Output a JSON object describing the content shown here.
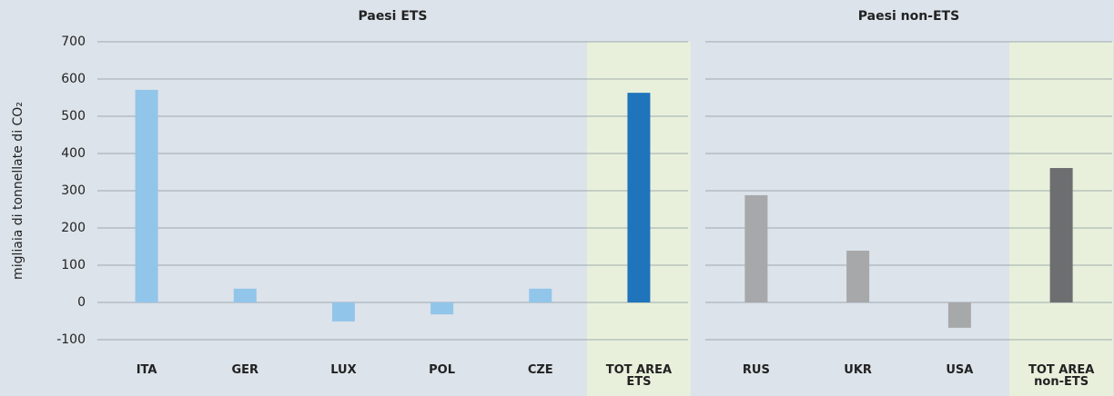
{
  "chart_data": [
    {
      "type": "bar",
      "title": "Paesi ETS",
      "ylabel": "migliaia di tonnellate di CO₂",
      "categories": [
        "ITA",
        "GER",
        "LUX",
        "POL",
        "CZE",
        "TOT AREA ETS"
      ],
      "values": [
        571,
        37,
        -51,
        -32,
        37,
        563
      ],
      "colors": [
        "#92c5ea",
        "#92c5ea",
        "#92c5ea",
        "#92c5ea",
        "#92c5ea",
        "#1f74bb"
      ],
      "highlight": "TOT AREA ETS",
      "ylim": [
        -100,
        700
      ],
      "yticks": [
        -100,
        0,
        100,
        200,
        300,
        400,
        500,
        600,
        700
      ],
      "grid": true
    },
    {
      "type": "bar",
      "title": "Paesi non-ETS",
      "categories": [
        "RUS",
        "UKR",
        "USA",
        "TOT AREA non-ETS"
      ],
      "values": [
        288,
        139,
        -68,
        361
      ],
      "colors": [
        "#a7a8aa",
        "#a7a8aa",
        "#a7a8aa",
        "#6d6e70"
      ],
      "highlight": "TOT AREA non-ETS",
      "ylim": [
        -100,
        700
      ],
      "grid": true
    }
  ]
}
